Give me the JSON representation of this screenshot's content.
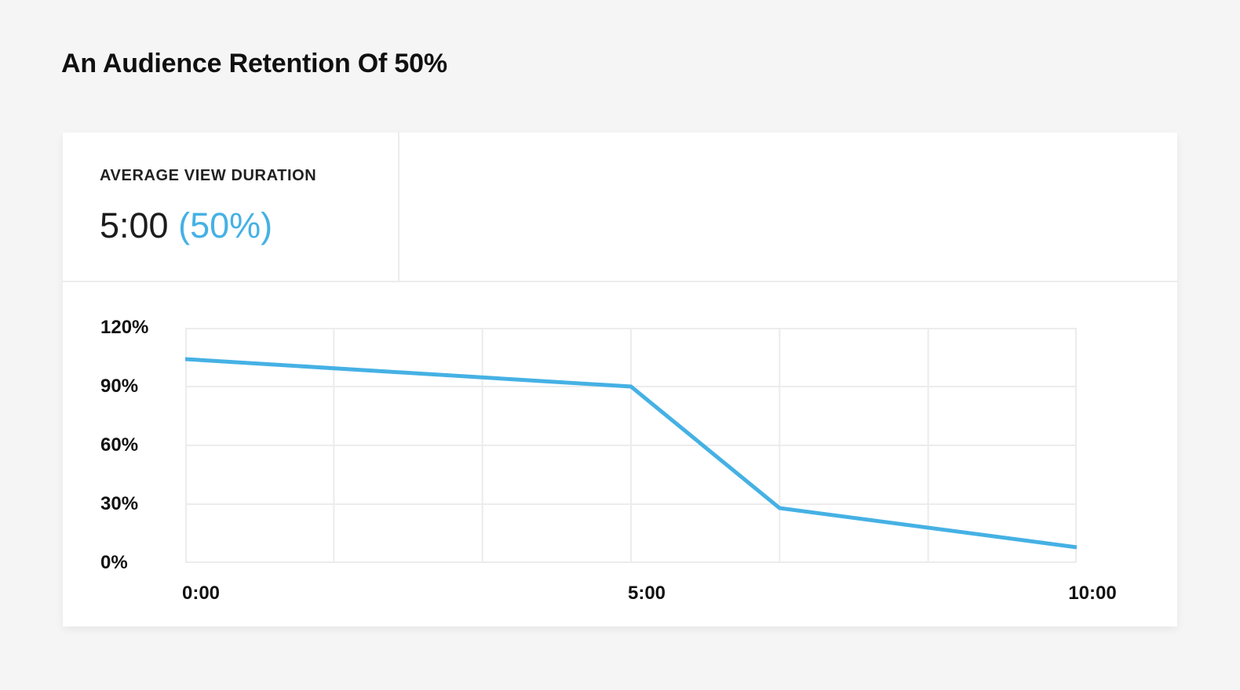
{
  "page": {
    "title": "An Audience Retention Of 50%",
    "background_color": "#f5f5f5"
  },
  "card": {
    "stat": {
      "label": "AVERAGE VIEW DURATION",
      "duration": "5:00",
      "percent": "(50%)",
      "percent_color": "#45b1e4"
    }
  },
  "chart_data": {
    "type": "line",
    "x_seconds": [
      0,
      300,
      400,
      600
    ],
    "values_percent": [
      104,
      90,
      28,
      8
    ],
    "xlim_seconds": [
      0,
      600
    ],
    "ylim_percent": [
      0,
      120
    ],
    "yticks": [
      {
        "value": 120,
        "label": "120%"
      },
      {
        "value": 90,
        "label": "90%"
      },
      {
        "value": 60,
        "label": "60%"
      },
      {
        "value": 30,
        "label": "30%"
      },
      {
        "value": 0,
        "label": "0%"
      }
    ],
    "xticks": [
      {
        "seconds": 0,
        "label": "0:00"
      },
      {
        "seconds": 300,
        "label": "5:00"
      },
      {
        "seconds": 600,
        "label": "10:00"
      }
    ],
    "grid": true,
    "vertical_gridline_intervals": 6,
    "legend": "none",
    "line_color": "#45b1e4",
    "gridline_color": "#ececec"
  }
}
